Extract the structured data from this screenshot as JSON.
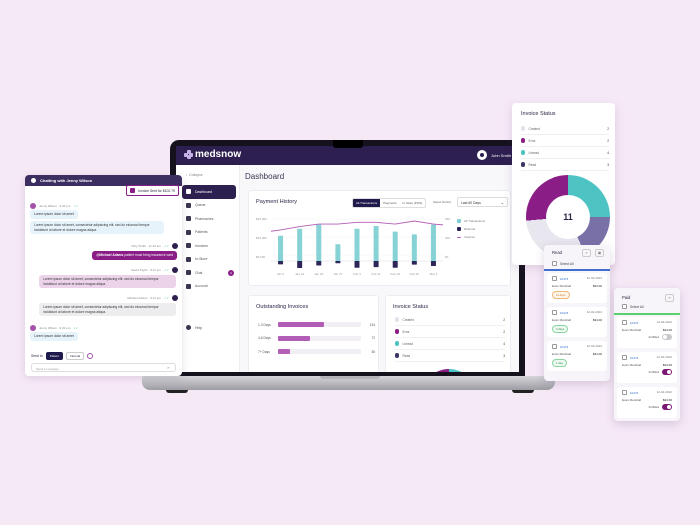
{
  "colors": {
    "background": "#f6e9f6",
    "navy": "#2d1f4f",
    "purple": "#8a1e86",
    "teal": "#4ec3c3",
    "light_purple": "#b35eb6",
    "created_grey": "#e4e2ea",
    "read_slate": "#7a70a8"
  },
  "app": {
    "brand": "medsnow",
    "user_name": "John Smith",
    "collapse_label": "Collapse",
    "page_title": "Dashboard"
  },
  "sidebar": {
    "items": [
      {
        "label": "Dashboard",
        "icon": "chart-icon",
        "active": true
      },
      {
        "label": "Queue",
        "icon": "queue-icon"
      },
      {
        "label": "Pharmacies",
        "icon": "pharmacy-icon"
      },
      {
        "label": "Patients",
        "icon": "patients-icon"
      },
      {
        "label": "Invoices",
        "icon": "invoice-icon"
      },
      {
        "label": "In-Store",
        "icon": "store-icon"
      },
      {
        "label": "Chat",
        "icon": "chat-icon",
        "badge": "3"
      },
      {
        "label": "Account",
        "icon": "account-icon"
      }
    ],
    "help_label": "Help"
  },
  "payment_history": {
    "title": "Payment History",
    "segments": [
      "All Transactions",
      "Payments",
      "In Store (POS)"
    ],
    "period_label": "Select Period",
    "period_value": "Last 60 Days",
    "left_axis": [
      "$15,000",
      "$10,000",
      "$5,000"
    ],
    "right_axis": [
      "250",
      "200",
      "50"
    ],
    "legend": [
      "All Transactions",
      "Refunds",
      "Invoices"
    ]
  },
  "chart_data": {
    "type": "bar",
    "title": "Payment History",
    "categories": [
      "Jan 6",
      "Jan 13",
      "Jan 20",
      "Jan 27",
      "Feb 4",
      "Feb 11",
      "Feb 18",
      "Feb 25",
      "Mar 4"
    ],
    "series": [
      {
        "name": "All Transactions",
        "type": "bar",
        "values": [
          9000,
          11500,
          13000,
          6000,
          11500,
          12500,
          10500,
          9500,
          13000
        ]
      },
      {
        "name": "Refunds",
        "type": "bar",
        "values": [
          -1200,
          -2500,
          -1600,
          -800,
          -2400,
          -2200,
          -2400,
          -1300,
          -1800
        ]
      },
      {
        "name": "Invoices",
        "type": "line",
        "axis": "right",
        "values": [
          185,
          205,
          220,
          220,
          230,
          230,
          220,
          238,
          220
        ]
      }
    ],
    "ylabel_left": "$",
    "ylim_left": [
      0,
      15000
    ],
    "ylim_right": [
      0,
      250
    ],
    "legend_position": "right"
  },
  "outstanding": {
    "title": "Outstanding Invoices",
    "rows": [
      {
        "label": "1-3 Days",
        "value": "134",
        "pct": 56
      },
      {
        "label": "4-6 Days",
        "value": "72",
        "pct": 38
      },
      {
        "label": "7+ Days",
        "value": "36",
        "pct": 14
      }
    ]
  },
  "invoice_status": {
    "title": "Invoice Status",
    "total": "11",
    "rows": [
      {
        "label": "Created",
        "value": "2",
        "color": "#e4e2ea"
      },
      {
        "label": "Error",
        "value": "2",
        "color": "#8a1e86"
      },
      {
        "label": "Unread",
        "value": "4",
        "color": "#4ec3c3"
      },
      {
        "label": "Read",
        "value": "3",
        "color": "#3d3566"
      }
    ]
  },
  "chat": {
    "title": "Chatting with Jenny Wilson",
    "invoice_pill": "Invoice Sent for $102.79",
    "messages": [
      {
        "meta": "Jenny Wilson · 3:46 pm",
        "text": "Lorem ipsum dolor sit amet"
      },
      {
        "text": "Lorem ipsum dolor sit amet, consectetur adipiscing elit, sed do eiusmod tempor incididunt ut labore et dolore magna aliqua."
      },
      {
        "meta": "Toby Smith · 11:23 am",
        "mention": "@Michael Adams",
        "text": " patient must bring insurance card"
      },
      {
        "meta": "David Taylor · 6:11 pm",
        "text": "Lorem ipsum dolor sit amet, consectetur adipiscing elit, sed do eiusmod tempor incididunt ut labore et dolore magna aliqua."
      },
      {
        "meta": "Michael Adams · 6:11 pm",
        "text": "Lorem ipsum dolor sit amet, consectetur adipiscing elit, sed do eiusmod tempor incididunt ut labore et dolore magna aliqua."
      },
      {
        "meta": "Jenny Wilson · 6:32 pm",
        "text": "Lorem ipsum dolor sit amet"
      }
    ],
    "send_to_label": "Send to",
    "send_to_options": [
      "Patient",
      "Internal"
    ],
    "input_placeholder": "Send a message"
  },
  "read_column": {
    "title": "Read",
    "select_all": "Select All",
    "items": [
      {
        "id": "10174",
        "date": "12-02-2022",
        "name": "Evan Marshall",
        "amount": "$34.00",
        "tag": "11 days",
        "tag_color": "orange"
      },
      {
        "id": "10174",
        "date": "12-02-2022",
        "name": "Evan Marshall",
        "amount": "$34.00",
        "tag": "3 days",
        "tag_color": "green"
      },
      {
        "id": "10174",
        "date": "12-02-2022",
        "name": "Evan Marshall",
        "amount": "$34.00",
        "tag": "1 day",
        "tag_color": "green"
      }
    ]
  },
  "paid_column": {
    "title": "Paid",
    "select_all": "Select All",
    "fulfilled_label": "Fulfilled",
    "items": [
      {
        "id": "10174",
        "date": "12-02-2022",
        "name": "Evan Marshall",
        "amount": "$34.00",
        "fulfilled": false
      },
      {
        "id": "10174",
        "date": "12-02-2022",
        "name": "Evan Marshall",
        "amount": "$34.00",
        "fulfilled": true
      },
      {
        "id": "10174",
        "date": "12-02-2022",
        "name": "Evan Marshall",
        "amount": "$34.00",
        "fulfilled": true
      }
    ]
  }
}
